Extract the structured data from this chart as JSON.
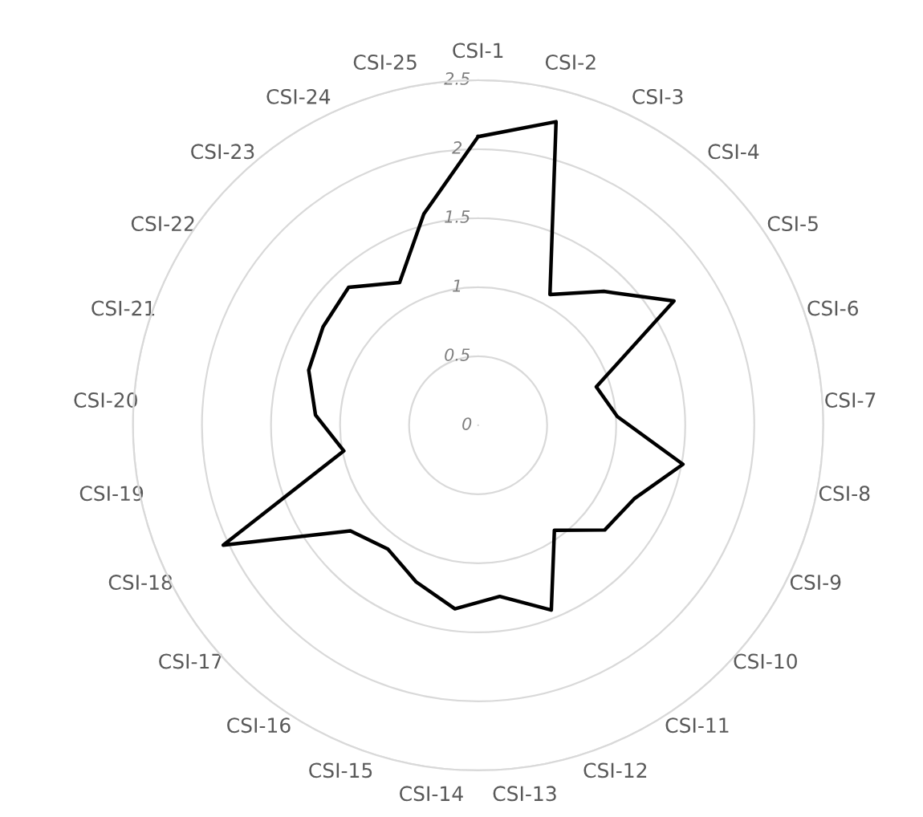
{
  "chart_data": {
    "type": "radar",
    "categories": [
      "CSI-1",
      "CSI-2",
      "CSI-3",
      "CSI-4",
      "CSI-5",
      "CSI-6",
      "CSI-7",
      "CSI-8",
      "CSI-9",
      "CSI-10",
      "CSI-11",
      "CSI-12",
      "CSI-13",
      "CSI-14",
      "CSI-15",
      "CSI-16",
      "CSI-17",
      "CSI-18",
      "CSI-19",
      "CSI-20",
      "CSI-21",
      "CSI-22",
      "CSI-23",
      "CSI-24",
      "CSI-25"
    ],
    "series": [
      {
        "color": "#000000",
        "values": [
          2.09,
          2.27,
          1.08,
          1.33,
          1.68,
          0.9,
          1.01,
          1.51,
          1.25,
          1.19,
          0.94,
          1.44,
          1.25,
          1.34,
          1.22,
          1.11,
          1.2,
          2.04,
          0.99,
          1.18,
          1.29,
          1.33,
          1.37,
          1.18,
          1.58
        ]
      }
    ],
    "ylim": [
      0,
      2.5
    ],
    "yticks": [
      0,
      0.5,
      1,
      1.5,
      2,
      2.5
    ],
    "grid": true,
    "marker": "none",
    "line_style": "solid",
    "legend": false
  }
}
